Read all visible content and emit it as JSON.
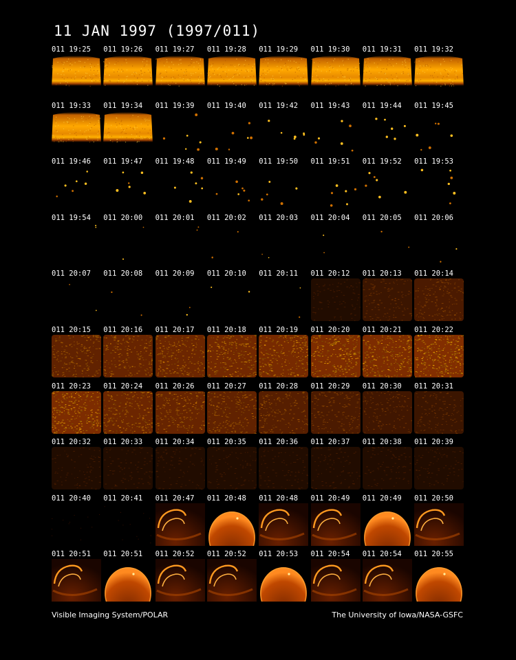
{
  "title": "11 JAN 1997  (1997/011)",
  "footer": {
    "left": "Visible Imaging System/POLAR",
    "right": "The University of Iowa/NASA-GSFC"
  },
  "colors": {
    "background": "#000000",
    "text": "#ffffff",
    "bright": "#ffb400",
    "dim": "#5a1800"
  },
  "frames": [
    {
      "t": "011 19:25",
      "kind": "band"
    },
    {
      "t": "011 19:26",
      "kind": "band"
    },
    {
      "t": "011 19:27",
      "kind": "band"
    },
    {
      "t": "011 19:28",
      "kind": "band"
    },
    {
      "t": "011 19:29",
      "kind": "band"
    },
    {
      "t": "011 19:30",
      "kind": "band"
    },
    {
      "t": "011 19:31",
      "kind": "band"
    },
    {
      "t": "011 19:32",
      "kind": "band"
    },
    {
      "t": "011 19:33",
      "kind": "band"
    },
    {
      "t": "011 19:34",
      "kind": "band"
    },
    {
      "t": "011 19:39",
      "kind": "stars"
    },
    {
      "t": "011 19:40",
      "kind": "stars"
    },
    {
      "t": "011 19:42",
      "kind": "stars"
    },
    {
      "t": "011 19:43",
      "kind": "stars"
    },
    {
      "t": "011 19:44",
      "kind": "stars"
    },
    {
      "t": "011 19:45",
      "kind": "stars"
    },
    {
      "t": "011 19:46",
      "kind": "stars"
    },
    {
      "t": "011 19:47",
      "kind": "stars"
    },
    {
      "t": "011 19:48",
      "kind": "stars"
    },
    {
      "t": "011 19:49",
      "kind": "stars"
    },
    {
      "t": "011 19:50",
      "kind": "stars"
    },
    {
      "t": "011 19:51",
      "kind": "stars"
    },
    {
      "t": "011 19:52",
      "kind": "stars"
    },
    {
      "t": "011 19:53",
      "kind": "stars"
    },
    {
      "t": "011 19:54",
      "kind": "sparse"
    },
    {
      "t": "011 20:00",
      "kind": "sparse"
    },
    {
      "t": "011 20:01",
      "kind": "sparse"
    },
    {
      "t": "011 20:02",
      "kind": "sparse"
    },
    {
      "t": "011 20:03",
      "kind": "sparse"
    },
    {
      "t": "011 20:04",
      "kind": "sparse"
    },
    {
      "t": "011 20:05",
      "kind": "sparse"
    },
    {
      "t": "011 20:06",
      "kind": "sparse"
    },
    {
      "t": "011 20:07",
      "kind": "sparse"
    },
    {
      "t": "011 20:08",
      "kind": "sparse"
    },
    {
      "t": "011 20:09",
      "kind": "sparse"
    },
    {
      "t": "011 20:10",
      "kind": "sparse"
    },
    {
      "t": "011 20:11",
      "kind": "sparse"
    },
    {
      "t": "011 20:12",
      "kind": "faint"
    },
    {
      "t": "011 20:13",
      "kind": "noise",
      "level": 0.35
    },
    {
      "t": "011 20:14",
      "kind": "noise",
      "level": 0.5
    },
    {
      "t": "011 20:15",
      "kind": "noise",
      "level": 0.7
    },
    {
      "t": "011 20:16",
      "kind": "noise",
      "level": 0.75
    },
    {
      "t": "011 20:17",
      "kind": "noise",
      "level": 0.8
    },
    {
      "t": "011 20:18",
      "kind": "noise",
      "level": 0.85
    },
    {
      "t": "011 20:19",
      "kind": "noise",
      "level": 0.9
    },
    {
      "t": "011 20:20",
      "kind": "noise",
      "level": 0.95
    },
    {
      "t": "011 20:21",
      "kind": "noise",
      "level": 0.95
    },
    {
      "t": "011 20:22",
      "kind": "noise",
      "level": 1.0
    },
    {
      "t": "011 20:23",
      "kind": "noise",
      "level": 0.95
    },
    {
      "t": "011 20:24",
      "kind": "noise",
      "level": 0.8
    },
    {
      "t": "011 20:26",
      "kind": "noise",
      "level": 0.75
    },
    {
      "t": "011 20:27",
      "kind": "noise",
      "level": 0.7
    },
    {
      "t": "011 20:28",
      "kind": "noise",
      "level": 0.6
    },
    {
      "t": "011 20:29",
      "kind": "noise",
      "level": 0.5
    },
    {
      "t": "011 20:30",
      "kind": "noise",
      "level": 0.4
    },
    {
      "t": "011 20:31",
      "kind": "noise",
      "level": 0.35
    },
    {
      "t": "011 20:32",
      "kind": "faint"
    },
    {
      "t": "011 20:33",
      "kind": "faint"
    },
    {
      "t": "011 20:34",
      "kind": "faint"
    },
    {
      "t": "011 20:35",
      "kind": "faint"
    },
    {
      "t": "011 20:36",
      "kind": "faint"
    },
    {
      "t": "011 20:37",
      "kind": "faint"
    },
    {
      "t": "011 20:38",
      "kind": "faint"
    },
    {
      "t": "011 20:39",
      "kind": "faint"
    },
    {
      "t": "011 20:40",
      "kind": "dark"
    },
    {
      "t": "011 20:41",
      "kind": "dark"
    },
    {
      "t": "011 20:47",
      "kind": "arc"
    },
    {
      "t": "011 20:48",
      "kind": "disk"
    },
    {
      "t": "011 20:48",
      "kind": "arc"
    },
    {
      "t": "011 20:49",
      "kind": "arc"
    },
    {
      "t": "011 20:49",
      "kind": "disk"
    },
    {
      "t": "011 20:50",
      "kind": "arc"
    },
    {
      "t": "011 20:51",
      "kind": "arc"
    },
    {
      "t": "011 20:51",
      "kind": "disk"
    },
    {
      "t": "011 20:52",
      "kind": "arc"
    },
    {
      "t": "011 20:52",
      "kind": "arc"
    },
    {
      "t": "011 20:53",
      "kind": "disk"
    },
    {
      "t": "011 20:54",
      "kind": "arc"
    },
    {
      "t": "011 20:54",
      "kind": "arc"
    },
    {
      "t": "011 20:55",
      "kind": "disk"
    }
  ]
}
